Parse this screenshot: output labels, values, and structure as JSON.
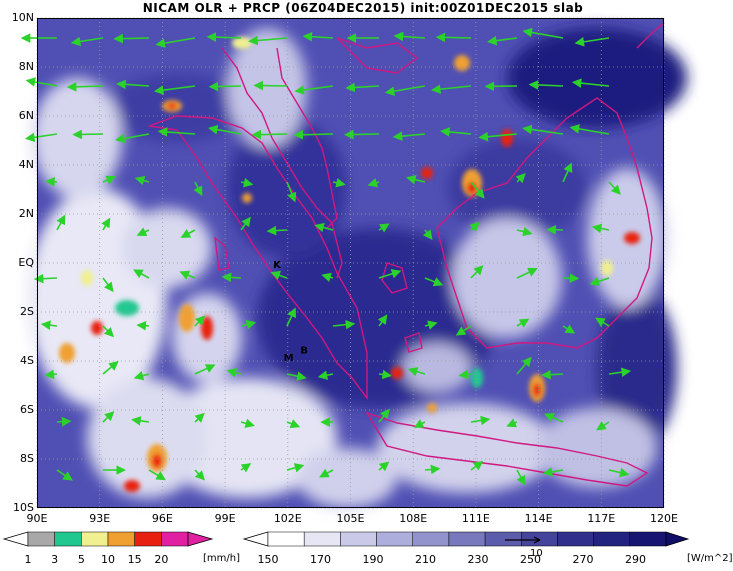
{
  "title": "NICAM OLR + PRCP (06Z04DEC2015) init:00Z01DEC2015 slab",
  "colors": {
    "background": "#ffffff",
    "olr_dark": "#1a1a78",
    "olr_mid": "#5050b4",
    "olr_light": "#c8c8ec",
    "coast": "#d01880",
    "wind": "#2ad22a",
    "grid": "#9a9a9a"
  },
  "map": {
    "lat_labels": [
      "10N",
      "8N",
      "6N",
      "4N",
      "2N",
      "EQ",
      "2S",
      "4S",
      "6S",
      "8S",
      "10S"
    ],
    "lon_labels": [
      "90E",
      "93E",
      "96E",
      "99E",
      "102E",
      "105E",
      "108E",
      "111E",
      "114E",
      "117E",
      "120E"
    ],
    "markers": [
      {
        "label": "K",
        "lon": 101.3,
        "lat": -0.2
      },
      {
        "label": "M",
        "lon": 101.8,
        "lat": -4.0
      },
      {
        "label": "B",
        "lon": 102.6,
        "lat": -3.7
      }
    ],
    "lon_range": [
      90,
      120
    ],
    "lat_range": [
      -10,
      10
    ],
    "grid": "dotted"
  },
  "precip_colorbar": {
    "ticks": [
      "1",
      "3",
      "5",
      "10",
      "15",
      "20"
    ],
    "colors": [
      "#a8a8a8",
      "#20c890",
      "#f0f090",
      "#f0a030",
      "#e82010",
      "#e020a0"
    ],
    "unit": "[mm/h]"
  },
  "olr_colorbar": {
    "ticks": [
      "150",
      "170",
      "190",
      "210",
      "230",
      "250",
      "270",
      "290"
    ],
    "colors": [
      "#ffffff",
      "#e6e6f4",
      "#cacae8",
      "#aeaedc",
      "#9292cc",
      "#7878bc",
      "#5c5cac",
      "#44449c",
      "#30308c",
      "#222280",
      "#161672"
    ],
    "unit": "[W/m^2]",
    "ref_vector_label": "10"
  }
}
